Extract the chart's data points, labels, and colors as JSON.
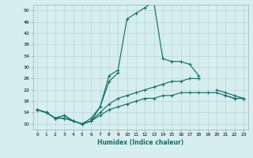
{
  "xlabel": "Humidex (Indice chaleur)",
  "background_color": "#d6eef0",
  "line_color": "#1a6e68",
  "grid_color": "#b8d8da",
  "xlim": [
    -0.5,
    23.5
  ],
  "ylim": [
    8,
    52
  ],
  "yticks": [
    10,
    14,
    18,
    22,
    26,
    30,
    34,
    38,
    42,
    46,
    50
  ],
  "xticks": [
    0,
    1,
    2,
    3,
    4,
    5,
    6,
    7,
    8,
    9,
    10,
    11,
    12,
    13,
    14,
    15,
    16,
    17,
    18,
    19,
    20,
    21,
    22,
    23
  ],
  "lines": [
    {
      "x": [
        0,
        1,
        2,
        3,
        4,
        5,
        6,
        7,
        8,
        9,
        10,
        11,
        12,
        13,
        14,
        15,
        16,
        17,
        18,
        19,
        20,
        21,
        22,
        23
      ],
      "y": [
        15,
        14,
        12,
        13,
        11,
        10,
        11,
        16,
        27,
        29,
        47,
        49,
        51,
        53,
        33,
        32,
        32,
        31,
        27,
        null,
        null,
        null,
        null,
        null
      ]
    },
    {
      "x": [
        0,
        1,
        2,
        3,
        4,
        5,
        6,
        7,
        8,
        9,
        10,
        11,
        12,
        13,
        14,
        15,
        16,
        17,
        18,
        19,
        20,
        21,
        22,
        23
      ],
      "y": [
        15,
        14,
        12,
        13,
        11,
        10,
        12,
        16,
        25,
        28,
        null,
        null,
        null,
        null,
        null,
        null,
        null,
        null,
        26,
        null,
        null,
        20,
        19,
        19
      ]
    },
    {
      "x": [
        0,
        1,
        2,
        3,
        4,
        5,
        6,
        7,
        8,
        9,
        10,
        11,
        12,
        13,
        14,
        15,
        16,
        17,
        18,
        19,
        20,
        21,
        22,
        23
      ],
      "y": [
        15,
        14,
        12,
        12,
        11,
        10,
        11,
        14,
        17,
        19,
        20,
        21,
        22,
        23,
        24,
        25,
        25,
        26,
        26,
        null,
        22,
        21,
        20,
        19
      ]
    },
    {
      "x": [
        0,
        1,
        2,
        3,
        4,
        5,
        6,
        7,
        8,
        9,
        10,
        11,
        12,
        13,
        14,
        15,
        16,
        17,
        18,
        19,
        20,
        21,
        22,
        23
      ],
      "y": [
        15,
        14,
        12,
        12,
        11,
        10,
        11,
        13,
        15,
        16,
        17,
        18,
        19,
        19,
        20,
        20,
        21,
        21,
        21,
        21,
        21,
        20,
        19,
        19
      ]
    }
  ]
}
